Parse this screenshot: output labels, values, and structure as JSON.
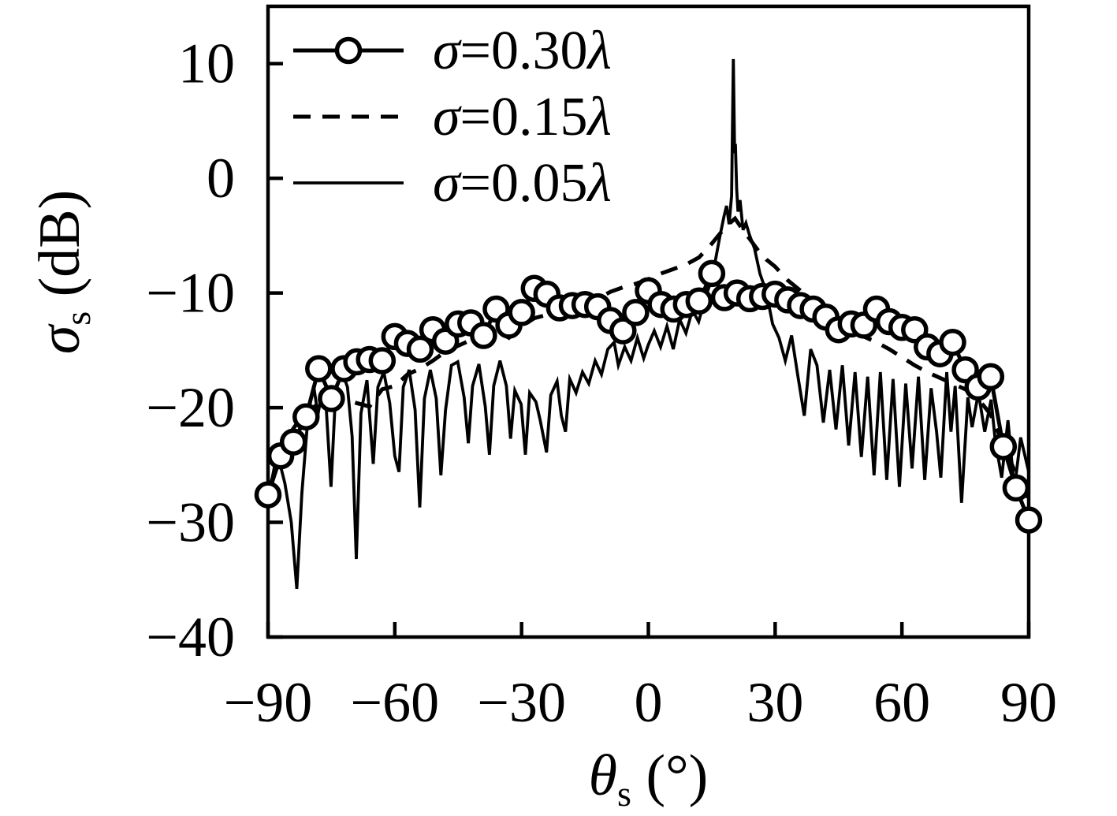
{
  "figure": {
    "background": "#ffffff",
    "ink": "#000000"
  },
  "chart_data": {
    "type": "line",
    "title": "",
    "xlabel": {
      "sym": "θ",
      "sub": "s",
      "unit": " (°)"
    },
    "ylabel": {
      "sym": "σ",
      "sub": "s",
      "unit": " (dB)"
    },
    "xlim": [
      -90,
      90
    ],
    "ylim": [
      -40,
      15
    ],
    "xticks": [
      -90,
      -60,
      -30,
      0,
      30,
      60,
      90
    ],
    "xticklabels": [
      "−90",
      "−60",
      "−30",
      "0",
      "30",
      "60",
      "90"
    ],
    "yticks": [
      -40,
      -30,
      -20,
      -10,
      0,
      10
    ],
    "yticklabels": [
      "−40",
      "−30",
      "−20",
      "−10",
      "0",
      "10"
    ],
    "grid": false,
    "legend_position": "top-left",
    "series": [
      {
        "name": "σ=0.30λ",
        "label_sym": "σ",
        "label_mid": "=0.30",
        "label_end": "λ",
        "style": "solid",
        "marker": "circle",
        "line_width": 5,
        "points": [
          [
            -90,
            -27.6
          ],
          [
            -87,
            -24.2
          ],
          [
            -84,
            -23.0
          ],
          [
            -81,
            -20.8
          ],
          [
            -78,
            -16.6
          ],
          [
            -75,
            -19.2
          ],
          [
            -72,
            -16.6
          ],
          [
            -69,
            -16.0
          ],
          [
            -66,
            -15.8
          ],
          [
            -63,
            -15.9
          ],
          [
            -60,
            -13.8
          ],
          [
            -57,
            -14.4
          ],
          [
            -54,
            -14.9
          ],
          [
            -51,
            -13.2
          ],
          [
            -48,
            -14.2
          ],
          [
            -45,
            -12.7
          ],
          [
            -42,
            -12.6
          ],
          [
            -39,
            -13.7
          ],
          [
            -36,
            -11.4
          ],
          [
            -33,
            -12.8
          ],
          [
            -30,
            -11.7
          ],
          [
            -27,
            -9.6
          ],
          [
            -24,
            -10.1
          ],
          [
            -21,
            -11.3
          ],
          [
            -18,
            -11.1
          ],
          [
            -15,
            -11.0
          ],
          [
            -12,
            -11.2
          ],
          [
            -9,
            -12.4
          ],
          [
            -6,
            -13.3
          ],
          [
            -3,
            -11.7
          ],
          [
            0,
            -9.8
          ],
          [
            3,
            -11.0
          ],
          [
            6,
            -11.4
          ],
          [
            9,
            -11.0
          ],
          [
            12,
            -10.7
          ],
          [
            15,
            -8.3
          ],
          [
            18,
            -10.4
          ],
          [
            21,
            -10.0
          ],
          [
            24,
            -10.5
          ],
          [
            27,
            -10.3
          ],
          [
            30,
            -10.1
          ],
          [
            33,
            -10.6
          ],
          [
            36,
            -11.1
          ],
          [
            39,
            -11.4
          ],
          [
            42,
            -12.1
          ],
          [
            45,
            -13.2
          ],
          [
            48,
            -12.7
          ],
          [
            51,
            -12.8
          ],
          [
            54,
            -11.4
          ],
          [
            57,
            -12.5
          ],
          [
            60,
            -13.0
          ],
          [
            63,
            -13.2
          ],
          [
            66,
            -14.7
          ],
          [
            69,
            -15.3
          ],
          [
            72,
            -14.3
          ],
          [
            75,
            -16.7
          ],
          [
            78,
            -18.2
          ],
          [
            81,
            -17.3
          ],
          [
            84,
            -23.4
          ],
          [
            87,
            -27.0
          ],
          [
            90,
            -29.8
          ]
        ]
      },
      {
        "name": "σ=0.15λ",
        "label_sym": "σ",
        "label_mid": "=0.15",
        "label_end": "λ",
        "style": "dashed",
        "marker": "none",
        "line_width": 5,
        "points": [
          [
            -90,
            -27.5
          ],
          [
            -87,
            -23.8
          ],
          [
            -84,
            -21.8
          ],
          [
            -81,
            -20.3
          ],
          [
            -78,
            -19.7
          ],
          [
            -75,
            -19.9
          ],
          [
            -72,
            -19.2
          ],
          [
            -69,
            -19.6
          ],
          [
            -66,
            -19.9
          ],
          [
            -63,
            -18.4
          ],
          [
            -60,
            -18.1
          ],
          [
            -57,
            -17.1
          ],
          [
            -54,
            -16.6
          ],
          [
            -51,
            -15.9
          ],
          [
            -48,
            -15.1
          ],
          [
            -45,
            -14.6
          ],
          [
            -42,
            -14.1
          ],
          [
            -39,
            -13.7
          ],
          [
            -36,
            -13.3
          ],
          [
            -33,
            -13.9
          ],
          [
            -30,
            -12.9
          ],
          [
            -27,
            -12.2
          ],
          [
            -24,
            -11.9
          ],
          [
            -21,
            -11.4
          ],
          [
            -18,
            -11.2
          ],
          [
            -15,
            -11.4
          ],
          [
            -12,
            -10.5
          ],
          [
            -9,
            -9.9
          ],
          [
            -6,
            -9.5
          ],
          [
            -3,
            -9.2
          ],
          [
            0,
            -8.8
          ],
          [
            3,
            -8.3
          ],
          [
            6,
            -7.9
          ],
          [
            9,
            -7.5
          ],
          [
            12,
            -6.9
          ],
          [
            15,
            -5.7
          ],
          [
            17,
            -4.8
          ],
          [
            19,
            -4.0
          ],
          [
            20.5,
            -3.5
          ],
          [
            22,
            -4.3
          ],
          [
            24,
            -5.3
          ],
          [
            26,
            -6.3
          ],
          [
            28,
            -7.1
          ],
          [
            30,
            -7.7
          ],
          [
            33,
            -8.9
          ],
          [
            36,
            -9.8
          ],
          [
            39,
            -10.8
          ],
          [
            42,
            -11.9
          ],
          [
            45,
            -12.8
          ],
          [
            48,
            -13.3
          ],
          [
            51,
            -13.8
          ],
          [
            54,
            -14.3
          ],
          [
            57,
            -14.9
          ],
          [
            60,
            -15.6
          ],
          [
            63,
            -16.3
          ],
          [
            66,
            -16.9
          ],
          [
            69,
            -17.4
          ],
          [
            72,
            -17.9
          ],
          [
            75,
            -18.4
          ],
          [
            78,
            -19.2
          ],
          [
            81,
            -20.6
          ],
          [
            84,
            -23.2
          ],
          [
            87,
            -25.8
          ],
          [
            90,
            -28.0
          ]
        ]
      },
      {
        "name": "σ=0.05λ",
        "label_sym": "σ",
        "label_mid": "=0.05",
        "label_end": "λ",
        "style": "solid",
        "marker": "none",
        "line_width": 3.8,
        "points": [
          [
            -90,
            -28.0
          ],
          [
            -88.5,
            -25.2
          ],
          [
            -87.5,
            -24.4
          ],
          [
            -86,
            -26.6
          ],
          [
            -84.5,
            -30.0
          ],
          [
            -83.2,
            -35.8
          ],
          [
            -82,
            -27.5
          ],
          [
            -80.5,
            -20.6
          ],
          [
            -79.2,
            -18.1
          ],
          [
            -78.2,
            -20.6
          ],
          [
            -77.2,
            -18.6
          ],
          [
            -76.2,
            -20.2
          ],
          [
            -75.1,
            -26.9
          ],
          [
            -74,
            -18.6
          ],
          [
            -72.6,
            -16.8
          ],
          [
            -71.2,
            -18.2
          ],
          [
            -70.1,
            -22.5
          ],
          [
            -69.1,
            -33.2
          ],
          [
            -68,
            -20.5
          ],
          [
            -66.6,
            -17.6
          ],
          [
            -65.1,
            -24.9
          ],
          [
            -64,
            -18.2
          ],
          [
            -62.6,
            -16.9
          ],
          [
            -61.2,
            -19.6
          ],
          [
            -60,
            -24.2
          ],
          [
            -59,
            -25.6
          ],
          [
            -58,
            -18.2
          ],
          [
            -56.6,
            -16.7
          ],
          [
            -55.2,
            -20.2
          ],
          [
            -54.1,
            -28.7
          ],
          [
            -53,
            -19.2
          ],
          [
            -51.6,
            -16.7
          ],
          [
            -50.2,
            -19.2
          ],
          [
            -49.1,
            -25.9
          ],
          [
            -48,
            -20.2
          ],
          [
            -46.6,
            -16.3
          ],
          [
            -45.1,
            -16.0
          ],
          [
            -43.6,
            -19.1
          ],
          [
            -42.6,
            -23.1
          ],
          [
            -41.6,
            -18.1
          ],
          [
            -40.1,
            -16.2
          ],
          [
            -38.6,
            -19.9
          ],
          [
            -37.6,
            -24.1
          ],
          [
            -36.6,
            -18.1
          ],
          [
            -35.1,
            -15.9
          ],
          [
            -33.6,
            -18.1
          ],
          [
            -32.6,
            -22.7
          ],
          [
            -31.6,
            -18.5
          ],
          [
            -30.1,
            -19.7
          ],
          [
            -29.1,
            -24.1
          ],
          [
            -28.1,
            -18.7
          ],
          [
            -26.6,
            -19.5
          ],
          [
            -25.6,
            -21.1
          ],
          [
            -24.1,
            -23.9
          ],
          [
            -23.1,
            -18.9
          ],
          [
            -21.6,
            -17.7
          ],
          [
            -20.6,
            -20.7
          ],
          [
            -19.6,
            -22.1
          ],
          [
            -18.6,
            -17.5
          ],
          [
            -17.1,
            -18.7
          ],
          [
            -15.6,
            -16.9
          ],
          [
            -14.1,
            -17.9
          ],
          [
            -12.6,
            -15.9
          ],
          [
            -11.1,
            -17.1
          ],
          [
            -9.6,
            -14.9
          ],
          [
            -8.1,
            -14.3
          ],
          [
            -7.1,
            -16.3
          ],
          [
            -5.6,
            -14.7
          ],
          [
            -4.1,
            -15.9
          ],
          [
            -2.6,
            -13.9
          ],
          [
            -1.1,
            -15.7
          ],
          [
            0,
            -14.5
          ],
          [
            1.4,
            -13.3
          ],
          [
            2.9,
            -14.7
          ],
          [
            4.4,
            -12.9
          ],
          [
            5.9,
            -14.9
          ],
          [
            7.4,
            -12.3
          ],
          [
            8.9,
            -13.5
          ],
          [
            10.4,
            -11.5
          ],
          [
            11.9,
            -12.5
          ],
          [
            13.4,
            -10.5
          ],
          [
            14.9,
            -8.9
          ],
          [
            15.9,
            -7.1
          ],
          [
            16.9,
            -5.1
          ],
          [
            17.9,
            -3.3
          ],
          [
            18.5,
            -2.4
          ],
          [
            19.1,
            -4.0
          ],
          [
            19.7,
            -1.5
          ],
          [
            20.1,
            10.4
          ],
          [
            20.4,
            2.2
          ],
          [
            20.6,
            3.0
          ],
          [
            20.9,
            -0.9
          ],
          [
            21.2,
            -2.9
          ],
          [
            21.7,
            -1.9
          ],
          [
            22.4,
            -4.5
          ],
          [
            23.1,
            -3.9
          ],
          [
            23.9,
            -4.9
          ],
          [
            25.1,
            -6.1
          ],
          [
            26.4,
            -8.3
          ],
          [
            27.9,
            -9.9
          ],
          [
            29.4,
            -12.7
          ],
          [
            30.9,
            -13.9
          ],
          [
            32.4,
            -15.9
          ],
          [
            33.9,
            -13.7
          ],
          [
            35.4,
            -17.3
          ],
          [
            36.9,
            -20.7
          ],
          [
            38.4,
            -14.9
          ],
          [
            39.9,
            -16.3
          ],
          [
            41.4,
            -21.3
          ],
          [
            42.9,
            -16.7
          ],
          [
            44.4,
            -21.9
          ],
          [
            45.9,
            -16.3
          ],
          [
            47.4,
            -23.3
          ],
          [
            48.9,
            -16.9
          ],
          [
            50.4,
            -24.3
          ],
          [
            51.9,
            -17.3
          ],
          [
            53.4,
            -25.9
          ],
          [
            54.9,
            -16.9
          ],
          [
            56.4,
            -26.3
          ],
          [
            57.9,
            -17.5
          ],
          [
            59.4,
            -26.9
          ],
          [
            60.9,
            -17.9
          ],
          [
            62.4,
            -25.3
          ],
          [
            63.9,
            -17.3
          ],
          [
            65.4,
            -26.3
          ],
          [
            66.9,
            -18.3
          ],
          [
            68.2,
            -22.1
          ],
          [
            69.2,
            -26.1
          ],
          [
            70.6,
            -16.9
          ],
          [
            71.6,
            -22.1
          ],
          [
            72.6,
            -18.1
          ],
          [
            74.1,
            -28.3
          ],
          [
            75.6,
            -19.1
          ],
          [
            76.6,
            -21.7
          ],
          [
            78.1,
            -18.7
          ],
          [
            79.6,
            -22.1
          ],
          [
            81.1,
            -19.3
          ],
          [
            82.1,
            -22.9
          ],
          [
            83.6,
            -26.1
          ],
          [
            85.1,
            -21.1
          ],
          [
            86.6,
            -27.1
          ],
          [
            88.1,
            -22.6
          ],
          [
            90,
            -25.6
          ]
        ]
      }
    ]
  }
}
